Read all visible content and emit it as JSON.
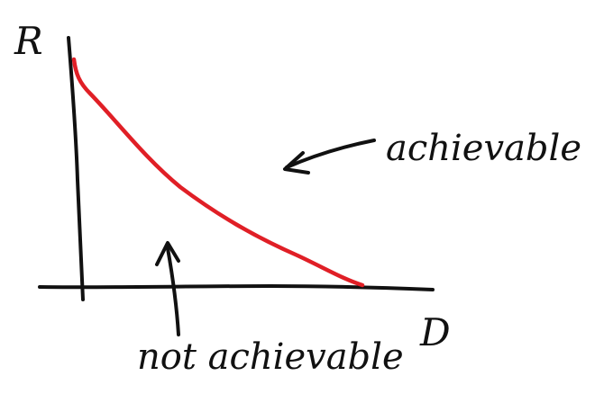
{
  "diagram": {
    "axes": {
      "y_label": "R",
      "x_label": "D"
    },
    "annotations": {
      "achievable": "achievable",
      "not_achievable": "not achievable"
    },
    "colors": {
      "axes": "#111111",
      "curve": "#e01f26",
      "text": "#111111"
    }
  }
}
